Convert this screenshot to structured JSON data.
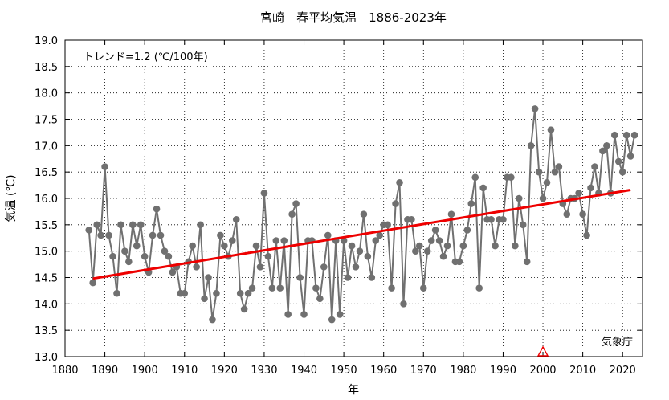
{
  "chart_data": {
    "type": "line",
    "title": "宮崎　春平均気温　1886-2023年",
    "xlabel": "年",
    "ylabel": "気温 (℃)",
    "trend_label": "トレンド=1.2 (℃/100年)",
    "source": "気象庁",
    "xlim": [
      1880,
      2025
    ],
    "ylim": [
      13.0,
      19.0
    ],
    "x_ticks": [
      1880,
      1890,
      1900,
      1910,
      1920,
      1930,
      1940,
      1950,
      1960,
      1970,
      1980,
      1990,
      2000,
      2010,
      2020
    ],
    "y_ticks": [
      "13.0",
      "13.5",
      "14.0",
      "14.5",
      "15.0",
      "15.5",
      "16.0",
      "16.5",
      "17.0",
      "17.5",
      "18.0",
      "18.5",
      "19.0"
    ],
    "grid": true,
    "colors": {
      "series": "#707070",
      "trend": "#ee0000",
      "marker": "#ee0000"
    },
    "series": [
      {
        "x": [
          1886,
          1887,
          1888,
          1889,
          1890,
          1891,
          1892,
          1893,
          1894,
          1895,
          1896,
          1897,
          1898,
          1899,
          1900,
          1901,
          1902,
          1903,
          1904,
          1905,
          1906,
          1907,
          1908,
          1909,
          1910,
          1911,
          1912,
          1913,
          1914,
          1915,
          1916,
          1917,
          1918,
          1919,
          1920,
          1921,
          1922,
          1923,
          1924,
          1925,
          1926,
          1927,
          1928,
          1929,
          1930,
          1931,
          1932,
          1933,
          1934,
          1935,
          1936,
          1937,
          1938,
          1939,
          1940,
          1941,
          1942,
          1943,
          1944,
          1945,
          1946,
          1947,
          1948,
          1949,
          1950,
          1951,
          1952,
          1953,
          1954,
          1955,
          1956,
          1957,
          1958,
          1959,
          1960,
          1961,
          1962,
          1963,
          1964,
          1965,
          1966,
          1967,
          1968,
          1969,
          1970,
          1971,
          1972,
          1973,
          1974,
          1975,
          1976,
          1977,
          1978,
          1979,
          1980,
          1981,
          1982,
          1983,
          1984,
          1985,
          1986,
          1987,
          1988,
          1989,
          1990,
          1991,
          1992,
          1993,
          1994,
          1995,
          1996,
          1997,
          1998,
          1999,
          2000,
          2001,
          2002,
          2003,
          2004,
          2005,
          2006,
          2007,
          2008,
          2009,
          2010,
          2011,
          2012,
          2013,
          2014,
          2015,
          2016,
          2017,
          2018,
          2019,
          2020,
          2021,
          2022,
          2023
        ],
        "values": [
          15.4,
          14.4,
          15.5,
          15.3,
          16.6,
          15.3,
          14.9,
          14.2,
          15.5,
          15.0,
          14.8,
          15.5,
          15.1,
          15.5,
          14.9,
          14.6,
          15.3,
          15.8,
          15.3,
          15.0,
          14.9,
          14.6,
          14.7,
          14.2,
          14.2,
          14.8,
          15.1,
          14.7,
          15.5,
          14.1,
          14.5,
          13.7,
          14.2,
          15.3,
          15.1,
          14.9,
          15.2,
          15.6,
          14.2,
          13.9,
          14.2,
          14.3,
          15.1,
          14.7,
          16.1,
          14.9,
          14.3,
          15.2,
          14.3,
          15.2,
          13.8,
          15.7,
          15.9,
          14.5,
          13.8,
          15.2,
          15.2,
          14.3,
          14.1,
          14.7,
          15.3,
          13.7,
          15.2,
          13.8,
          15.2,
          14.5,
          15.1,
          14.7,
          15.0,
          15.7,
          14.9,
          14.5,
          15.2,
          15.3,
          15.5,
          15.5,
          14.3,
          15.9,
          16.3,
          14.0,
          15.6,
          15.6,
          15.0,
          15.1,
          14.3,
          15.0,
          15.2,
          15.4,
          15.2,
          14.9,
          15.1,
          15.7,
          14.8,
          14.8,
          15.1,
          15.4,
          15.9,
          16.4,
          14.3,
          16.2,
          15.6,
          15.6,
          15.1,
          15.6,
          15.6,
          16.4,
          16.4,
          15.1,
          16.0,
          15.5,
          14.8,
          17.0,
          17.7,
          16.5,
          16.0,
          16.3,
          17.3,
          16.5,
          16.6,
          15.9,
          15.7,
          16.0,
          16.0,
          16.1,
          15.7,
          15.3,
          16.2,
          16.6,
          16.1,
          16.9,
          17.0,
          16.1,
          17.2,
          16.7,
          16.5,
          17.2,
          16.8,
          17.2
        ]
      }
    ],
    "trend": {
      "x": [
        1887,
        2022
      ],
      "values": [
        14.48,
        16.16
      ]
    },
    "marker_year": 2000
  }
}
